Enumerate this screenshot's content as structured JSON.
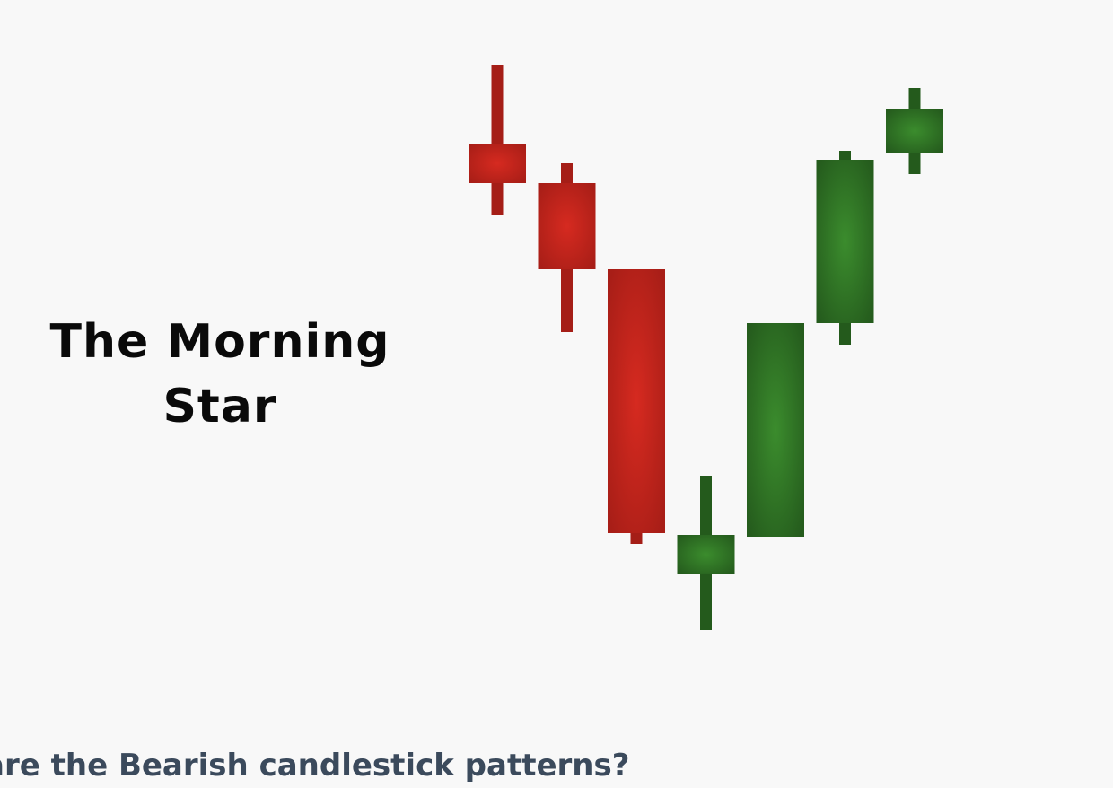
{
  "title_lines": [
    "The Morning",
    "Star"
  ],
  "footer_text": "are the Bearish candlestick patterns?",
  "colors": {
    "bearish_light": "#d42a1f",
    "bearish_dark": "#a51e17",
    "bullish_light": "#3a8a2c",
    "bullish_dark": "#245a1c",
    "background": "#f8f8f8"
  },
  "chart_data": {
    "type": "candlestick",
    "title": "The Morning Star",
    "candles": [
      {
        "direction": "bearish",
        "open": 540,
        "close": 496,
        "high": 628,
        "low": 460
      },
      {
        "direction": "bearish",
        "open": 496,
        "close": 400,
        "high": 518,
        "low": 330
      },
      {
        "direction": "bearish",
        "open": 400,
        "close": 106,
        "high": 400,
        "low": 94
      },
      {
        "direction": "bullish",
        "open": 60,
        "close": 104,
        "high": 170,
        "low": -2
      },
      {
        "direction": "bullish",
        "open": 102,
        "close": 340,
        "high": 340,
        "low": 102
      },
      {
        "direction": "bullish",
        "open": 340,
        "close": 522,
        "high": 532,
        "low": 316
      },
      {
        "direction": "bullish",
        "open": 530,
        "close": 578,
        "high": 602,
        "low": 506
      }
    ]
  }
}
